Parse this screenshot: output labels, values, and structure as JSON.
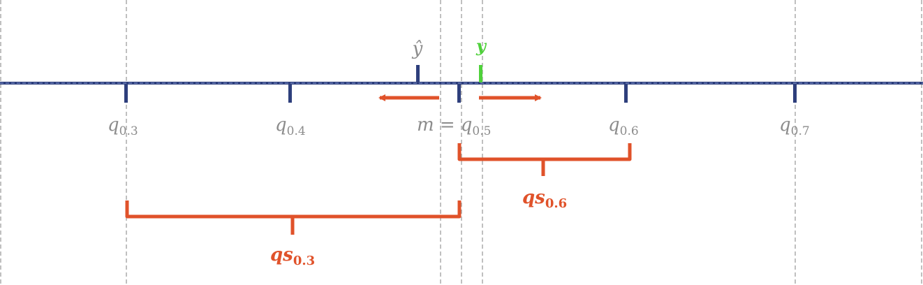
{
  "colors": {
    "axis": "#2e3f7c",
    "guide": "#a6a6a6",
    "quantile_label": "#8c8c8c",
    "truth": "#4fd13b",
    "score": "#e0522a",
    "prediction": "#2e3f7c"
  },
  "prediction": {
    "symbol": "ŷ",
    "position": 0.459
  },
  "truth": {
    "symbol": "y",
    "position": 0.512
  },
  "quantiles": [
    {
      "base": "q",
      "sub": "0.3",
      "level": 0.3
    },
    {
      "base": "q",
      "sub": "0.4",
      "level": 0.4
    },
    {
      "base": "q",
      "sub": "0.5",
      "level": 0.5,
      "prefix": "m ="
    },
    {
      "base": "q",
      "sub": "0.6",
      "level": 0.6
    },
    {
      "base": "q",
      "sub": "0.7",
      "level": 0.7
    }
  ],
  "scores": [
    {
      "base": "qs",
      "sub": "0.6",
      "from_level": 0.5,
      "to_level": 0.6
    },
    {
      "base": "qs",
      "sub": "0.3",
      "from_level": 0.3,
      "to_level": 0.5
    }
  ]
}
